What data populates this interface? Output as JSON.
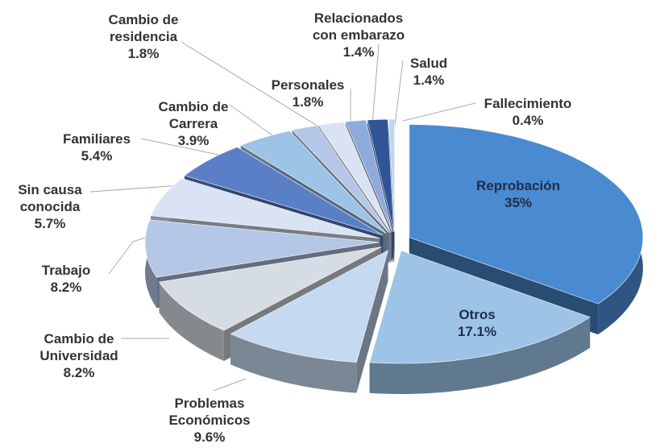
{
  "chart_data": {
    "type": "pie3d",
    "categories": [
      "Reprobación",
      "Otros",
      "Problemas\nEconómicos",
      "Cambio de\nUniversidad",
      "Trabajo",
      "Sin causa\nconocida",
      "Familiares",
      "Cambio de\nCarrera",
      "Cambio de\nresidencia",
      "Personales",
      "Relacionados\ncon embarazo",
      "Salud",
      "Fallecimiento"
    ],
    "values": [
      35,
      17.1,
      9.6,
      8.2,
      8.2,
      5.7,
      5.4,
      3.9,
      1.8,
      1.8,
      1.4,
      1.4,
      0.4
    ],
    "value_labels": [
      "35%",
      "17.1%",
      "9.6%",
      "8.2%",
      "8.2%",
      "5.7%",
      "5.4%",
      "3.9%",
      "1.8%",
      "1.8%",
      "1.4%",
      "1.4%",
      "0.4%"
    ],
    "colors": [
      "#4a8ad0",
      "#9dc3e6",
      "#c5d9f1",
      "#d6dce4",
      "#b4c7e7",
      "#dae3f3",
      "#5b7fc7",
      "#9dc3e6",
      "#b4c7e7",
      "#dae3f3",
      "#8faadc",
      "#2f5597",
      "#bdd7ee"
    ]
  }
}
